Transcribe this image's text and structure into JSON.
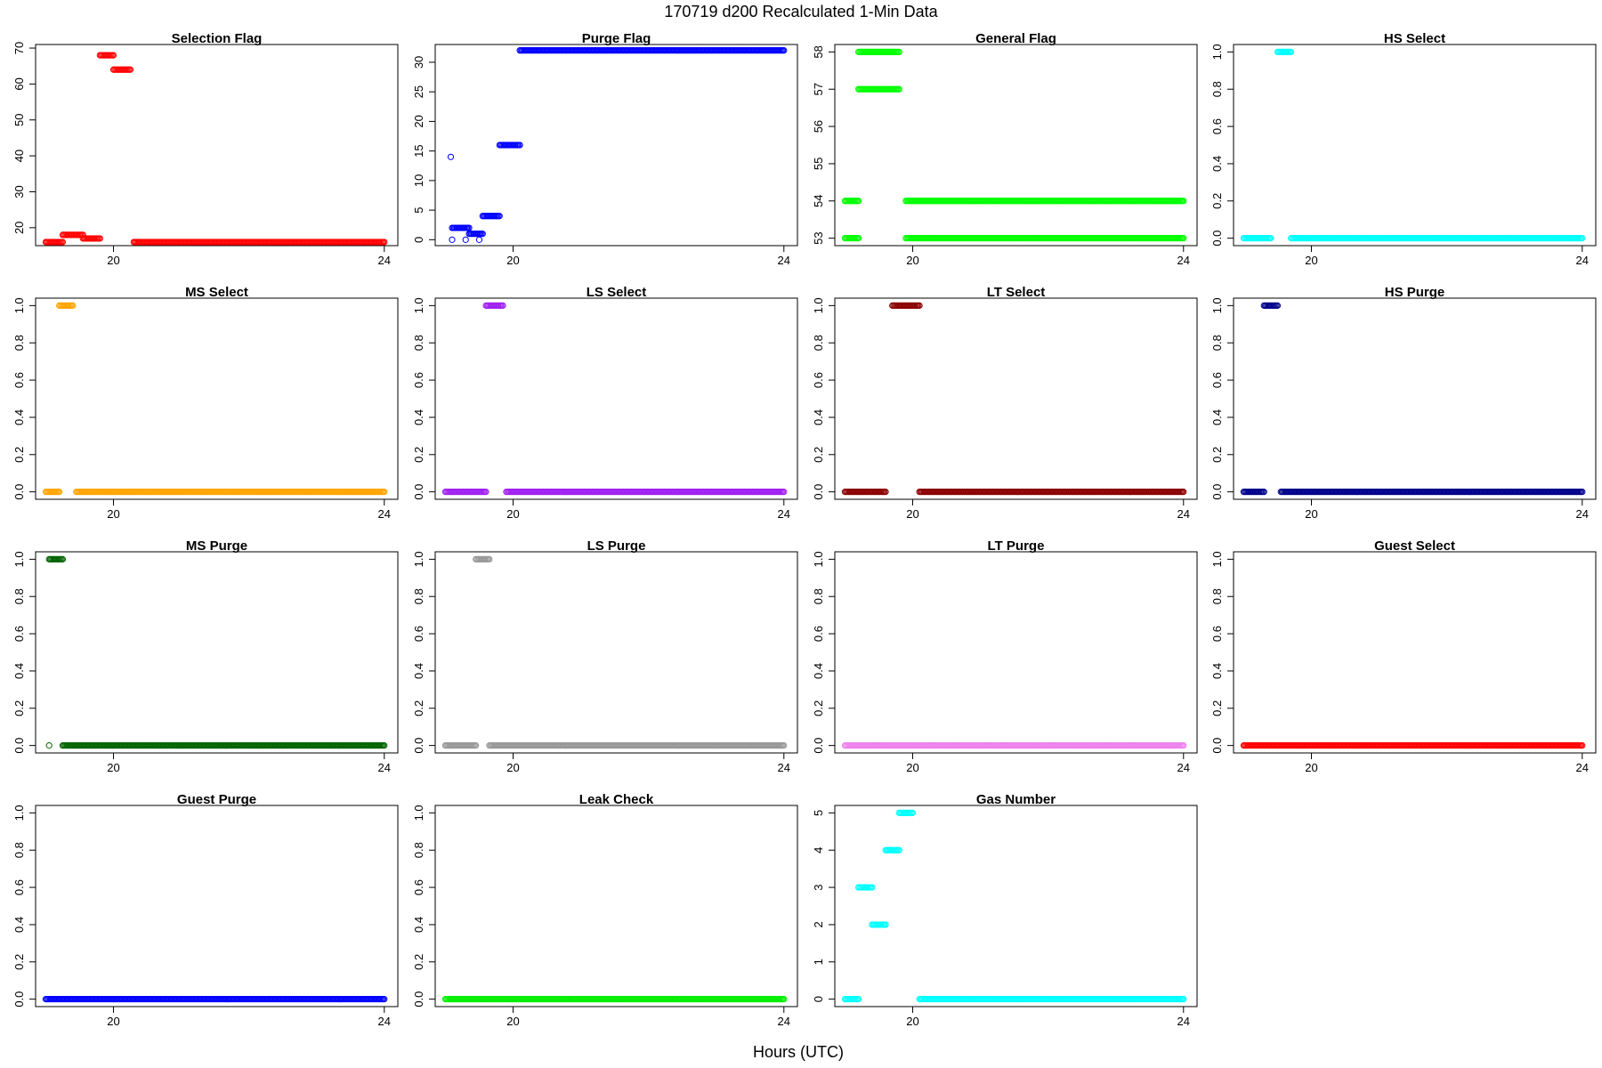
{
  "header": {
    "title": "170719   d200   Recalculated 1-Min Data",
    "xlabel": "Hours (UTC)"
  },
  "chart_data": [
    {
      "type": "scatter",
      "title": "Selection Flag",
      "color": "#ff0000",
      "xlim": [
        18.85,
        24.2
      ],
      "ylim": [
        15,
        71
      ],
      "xticks": [
        20,
        24
      ],
      "yticks": [
        20,
        30,
        40,
        50,
        60,
        70
      ],
      "segments": [
        {
          "x": [
            19.0,
            19.25
          ],
          "y": 16
        },
        {
          "x": [
            19.25,
            19.55
          ],
          "y": 18
        },
        {
          "x": [
            19.55,
            19.8
          ],
          "y": 17
        },
        {
          "x": [
            19.8,
            20.0
          ],
          "y": 68
        },
        {
          "x": [
            20.0,
            20.25
          ],
          "y": 64
        },
        {
          "x": [
            20.3,
            24.0
          ],
          "y": 16
        }
      ]
    },
    {
      "type": "scatter",
      "title": "Purge Flag",
      "color": "#0000ff",
      "xlim": [
        18.85,
        24.2
      ],
      "ylim": [
        -1,
        33
      ],
      "xticks": [
        20,
        24
      ],
      "yticks": [
        0,
        5,
        10,
        15,
        20,
        25,
        30
      ],
      "segments": [
        {
          "x": [
            19.08,
            19.08
          ],
          "y": 14
        },
        {
          "x": [
            19.1,
            19.1
          ],
          "y": 0
        },
        {
          "x": [
            19.1,
            19.35
          ],
          "y": 2
        },
        {
          "x": [
            19.3,
            19.3
          ],
          "y": 0
        },
        {
          "x": [
            19.35,
            19.55
          ],
          "y": 1
        },
        {
          "x": [
            19.5,
            19.5
          ],
          "y": 0
        },
        {
          "x": [
            19.55,
            19.8
          ],
          "y": 4
        },
        {
          "x": [
            19.8,
            20.1
          ],
          "y": 16
        },
        {
          "x": [
            20.1,
            24.0
          ],
          "y": 32
        }
      ]
    },
    {
      "type": "scatter",
      "title": "General Flag",
      "color": "#00ff00",
      "xlim": [
        18.85,
        24.2
      ],
      "ylim": [
        52.8,
        58.2
      ],
      "xticks": [
        20,
        24
      ],
      "yticks": [
        53,
        54,
        55,
        56,
        57,
        58
      ],
      "segments": [
        {
          "x": [
            19.0,
            19.2
          ],
          "y": 54
        },
        {
          "x": [
            19.0,
            19.2
          ],
          "y": 53
        },
        {
          "x": [
            19.2,
            19.8
          ],
          "y": 58
        },
        {
          "x": [
            19.2,
            19.8
          ],
          "y": 57
        },
        {
          "x": [
            19.9,
            24.0
          ],
          "y": 54
        },
        {
          "x": [
            19.9,
            24.0
          ],
          "y": 53
        }
      ]
    },
    {
      "type": "scatter",
      "title": "HS Select",
      "color": "#00ffff",
      "xlim": [
        18.85,
        24.2
      ],
      "ylim": [
        -0.04,
        1.04
      ],
      "xticks": [
        20,
        24
      ],
      "yticks": [
        0.0,
        0.2,
        0.4,
        0.6,
        0.8,
        1.0
      ],
      "segments": [
        {
          "x": [
            19.0,
            19.4
          ],
          "y": 0
        },
        {
          "x": [
            19.5,
            19.7
          ],
          "y": 1
        },
        {
          "x": [
            19.7,
            24.0
          ],
          "y": 0
        }
      ]
    },
    {
      "type": "scatter",
      "title": "MS Select",
      "color": "#ffa500",
      "xlim": [
        18.85,
        24.2
      ],
      "ylim": [
        -0.04,
        1.04
      ],
      "xticks": [
        20,
        24
      ],
      "yticks": [
        0.0,
        0.2,
        0.4,
        0.6,
        0.8,
        1.0
      ],
      "segments": [
        {
          "x": [
            19.0,
            19.2
          ],
          "y": 0
        },
        {
          "x": [
            19.2,
            19.4
          ],
          "y": 1
        },
        {
          "x": [
            19.45,
            24.0
          ],
          "y": 0
        }
      ]
    },
    {
      "type": "scatter",
      "title": "LS Select",
      "color": "#a020f0",
      "xlim": [
        18.85,
        24.2
      ],
      "ylim": [
        -0.04,
        1.04
      ],
      "xticks": [
        20,
        24
      ],
      "yticks": [
        0.0,
        0.2,
        0.4,
        0.6,
        0.8,
        1.0
      ],
      "segments": [
        {
          "x": [
            19.0,
            19.6
          ],
          "y": 0
        },
        {
          "x": [
            19.6,
            19.85
          ],
          "y": 1
        },
        {
          "x": [
            19.9,
            24.0
          ],
          "y": 0
        }
      ]
    },
    {
      "type": "scatter",
      "title": "LT Select",
      "color": "#8b0000",
      "xlim": [
        18.85,
        24.2
      ],
      "ylim": [
        -0.04,
        1.04
      ],
      "xticks": [
        20,
        24
      ],
      "yticks": [
        0.0,
        0.2,
        0.4,
        0.6,
        0.8,
        1.0
      ],
      "segments": [
        {
          "x": [
            19.0,
            19.6
          ],
          "y": 0
        },
        {
          "x": [
            19.7,
            20.1
          ],
          "y": 1
        },
        {
          "x": [
            20.1,
            24.0
          ],
          "y": 0
        }
      ]
    },
    {
      "type": "scatter",
      "title": "HS Purge",
      "color": "#00008b",
      "xlim": [
        18.85,
        24.2
      ],
      "ylim": [
        -0.04,
        1.04
      ],
      "xticks": [
        20,
        24
      ],
      "yticks": [
        0.0,
        0.2,
        0.4,
        0.6,
        0.8,
        1.0
      ],
      "segments": [
        {
          "x": [
            19.0,
            19.3
          ],
          "y": 0
        },
        {
          "x": [
            19.3,
            19.5
          ],
          "y": 1
        },
        {
          "x": [
            19.55,
            24.0
          ],
          "y": 0
        }
      ]
    },
    {
      "type": "scatter",
      "title": "MS Purge",
      "color": "#006400",
      "xlim": [
        18.85,
        24.2
      ],
      "ylim": [
        -0.04,
        1.04
      ],
      "xticks": [
        20,
        24
      ],
      "yticks": [
        0.0,
        0.2,
        0.4,
        0.6,
        0.8,
        1.0
      ],
      "segments": [
        {
          "x": [
            19.05,
            19.05
          ],
          "y": 0
        },
        {
          "x": [
            19.05,
            19.25
          ],
          "y": 1
        },
        {
          "x": [
            19.25,
            24.0
          ],
          "y": 0
        }
      ]
    },
    {
      "type": "scatter",
      "title": "LS Purge",
      "color": "#999999",
      "xlim": [
        18.85,
        24.2
      ],
      "ylim": [
        -0.04,
        1.04
      ],
      "xticks": [
        20,
        24
      ],
      "yticks": [
        0.0,
        0.2,
        0.4,
        0.6,
        0.8,
        1.0
      ],
      "segments": [
        {
          "x": [
            19.0,
            19.45
          ],
          "y": 0
        },
        {
          "x": [
            19.45,
            19.65
          ],
          "y": 1
        },
        {
          "x": [
            19.65,
            24.0
          ],
          "y": 0
        }
      ]
    },
    {
      "type": "scatter",
      "title": "LT Purge",
      "color": "#ee82ee",
      "xlim": [
        18.85,
        24.2
      ],
      "ylim": [
        -0.04,
        1.04
      ],
      "xticks": [
        20,
        24
      ],
      "yticks": [
        0.0,
        0.2,
        0.4,
        0.6,
        0.8,
        1.0
      ],
      "segments": [
        {
          "x": [
            19.0,
            24.0
          ],
          "y": 0
        }
      ]
    },
    {
      "type": "scatter",
      "title": "Guest Select",
      "color": "#ff0000",
      "xlim": [
        18.85,
        24.2
      ],
      "ylim": [
        -0.04,
        1.04
      ],
      "xticks": [
        20,
        24
      ],
      "yticks": [
        0.0,
        0.2,
        0.4,
        0.6,
        0.8,
        1.0
      ],
      "segments": [
        {
          "x": [
            19.0,
            24.0
          ],
          "y": 0
        }
      ]
    },
    {
      "type": "scatter",
      "title": "Guest Purge",
      "color": "#0000ff",
      "xlim": [
        18.85,
        24.2
      ],
      "ylim": [
        -0.04,
        1.04
      ],
      "xticks": [
        20,
        24
      ],
      "yticks": [
        0.0,
        0.2,
        0.4,
        0.6,
        0.8,
        1.0
      ],
      "segments": [
        {
          "x": [
            19.0,
            24.0
          ],
          "y": 0
        }
      ]
    },
    {
      "type": "scatter",
      "title": "Leak Check",
      "color": "#00ee00",
      "xlim": [
        18.85,
        24.2
      ],
      "ylim": [
        -0.04,
        1.04
      ],
      "xticks": [
        20,
        24
      ],
      "yticks": [
        0.0,
        0.2,
        0.4,
        0.6,
        0.8,
        1.0
      ],
      "segments": [
        {
          "x": [
            19.0,
            24.0
          ],
          "y": 0
        }
      ]
    },
    {
      "type": "scatter",
      "title": "Gas Number",
      "color": "#00ffff",
      "xlim": [
        18.85,
        24.2
      ],
      "ylim": [
        -0.2,
        5.2
      ],
      "xticks": [
        20,
        24
      ],
      "yticks": [
        0,
        1,
        2,
        3,
        4,
        5
      ],
      "segments": [
        {
          "x": [
            19.0,
            19.2
          ],
          "y": 0
        },
        {
          "x": [
            19.2,
            19.4
          ],
          "y": 3
        },
        {
          "x": [
            19.4,
            19.6
          ],
          "y": 2
        },
        {
          "x": [
            19.6,
            19.8
          ],
          "y": 4
        },
        {
          "x": [
            19.8,
            20.0
          ],
          "y": 5
        },
        {
          "x": [
            20.1,
            24.0
          ],
          "y": 0
        }
      ]
    }
  ]
}
